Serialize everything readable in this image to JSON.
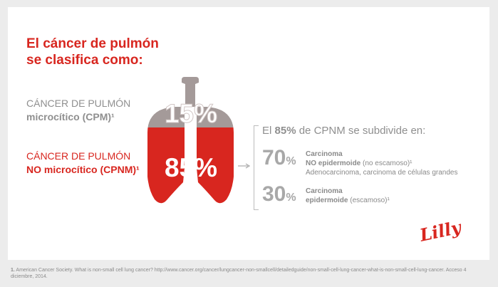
{
  "title": {
    "line1": "El cáncer de pulmón",
    "line2": "se clasifica como:"
  },
  "types": {
    "cpm": {
      "line1": "CÁNCER DE PULMÓN",
      "line2": "microcítico (CPM)¹",
      "percent": "15%"
    },
    "cpnm": {
      "line1": "CÁNCER DE PULMÓN",
      "line2": "NO microcítico (CPNM)¹",
      "percent": "85%"
    }
  },
  "subdivision": {
    "prefix": "El ",
    "emphasis": "85%",
    "suffix": " de CPNM se subdivide en:",
    "items": [
      {
        "value": "70",
        "unit": "%",
        "line1": "Carcinoma",
        "line2_bold": "NO epidermoide",
        "line2_rest": " (no escamoso)¹",
        "line3": "Adenocarcinoma, carcinoma de células grandes"
      },
      {
        "value": "30",
        "unit": "%",
        "line1": "Carcinoma",
        "line2_bold": "epidermoide",
        "line2_rest": " (escamoso)¹"
      }
    ]
  },
  "logo": "Lilly",
  "footnote": {
    "number": "1.",
    "text": " American Cancer Society. What is non-small cell lung cancer? http://www.cancer.org/cancer/lungcancer-non-smallcell/detailedguide/non-small-cell-lung-cancer-what-is-non-small-cell-lung-cancer. Acceso 4 diciembre, 2014."
  },
  "colors": {
    "red": "#d8261f",
    "gray_fill": "#a49a99",
    "text_gray": "#8f8f8f",
    "background": "#ececec"
  }
}
